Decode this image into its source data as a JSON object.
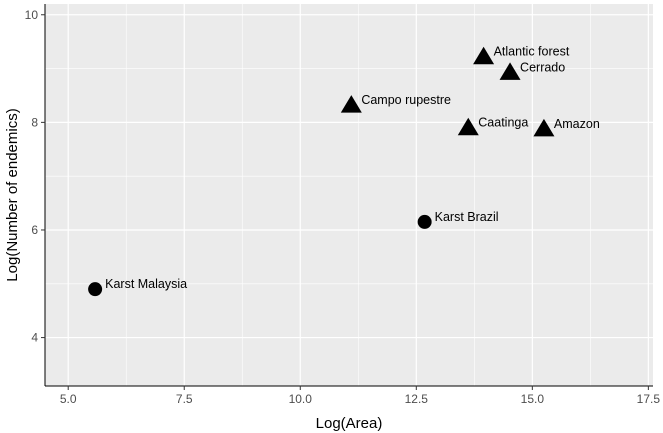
{
  "chart_data": {
    "type": "scatter",
    "xlabel": "Log(Area)",
    "ylabel": "Log(Number of endemics)",
    "xlim": [
      4.5,
      17.6
    ],
    "ylim": [
      3.1,
      10.2
    ],
    "xticks": [
      5.0,
      7.5,
      10.0,
      12.5,
      15.0,
      17.5
    ],
    "xtick_labels": [
      "5.0",
      "7.5",
      "10.0",
      "12.5",
      "15.0",
      "17.5"
    ],
    "yticks": [
      4,
      6,
      8,
      10
    ],
    "ytick_labels": [
      "4",
      "6",
      "8",
      "10"
    ],
    "grid": true,
    "legend": "none",
    "panel_color": "#ebebeb",
    "grid_color": "#ffffff",
    "marker_color": "#000000",
    "points": [
      {
        "label": "Atlantic forest",
        "x": 13.95,
        "y": 9.22,
        "shape": "triangle"
      },
      {
        "label": "Cerrado",
        "x": 14.52,
        "y": 8.93,
        "shape": "triangle"
      },
      {
        "label": "Campo rupestre",
        "x": 11.1,
        "y": 8.32,
        "shape": "triangle"
      },
      {
        "label": "Caatinga",
        "x": 13.62,
        "y": 7.9,
        "shape": "triangle"
      },
      {
        "label": "Amazon",
        "x": 15.25,
        "y": 7.88,
        "shape": "triangle"
      },
      {
        "label": "Karst Brazil",
        "x": 12.68,
        "y": 6.15,
        "shape": "circle"
      },
      {
        "label": "Karst Malaysia",
        "x": 5.58,
        "y": 4.9,
        "shape": "circle"
      }
    ]
  }
}
